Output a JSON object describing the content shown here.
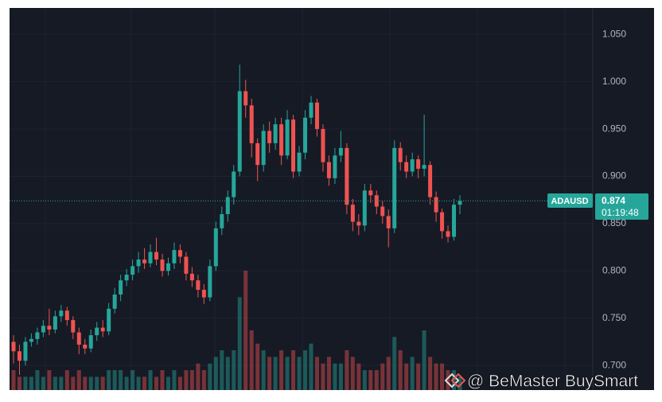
{
  "chart_data": {
    "type": "candlestick",
    "symbol": "ADAUSD",
    "last_price": 0.874,
    "countdown": "01:19:48",
    "watermark": "@ BeMaster BuySmart",
    "up_color": "#26a69a",
    "down_color": "#ef5350",
    "ylim": [
      0.674,
      1.078
    ],
    "yticks": [
      {
        "value": 0.7,
        "label": "0.700"
      },
      {
        "value": 0.75,
        "label": "0.750"
      },
      {
        "value": 0.8,
        "label": "0.800"
      },
      {
        "value": 0.85,
        "label": "0.850"
      },
      {
        "value": 0.9,
        "label": "0.900"
      },
      {
        "value": 0.95,
        "label": "0.950"
      },
      {
        "value": 1.0,
        "label": "1.000"
      },
      {
        "value": 1.05,
        "label": "1.050"
      }
    ],
    "grid": true,
    "open": [
      0.725,
      0.715,
      0.705,
      0.725,
      0.728,
      0.735,
      0.742,
      0.738,
      0.752,
      0.758,
      0.748,
      0.735,
      0.722,
      0.718,
      0.732,
      0.74,
      0.736,
      0.76,
      0.775,
      0.79,
      0.796,
      0.805,
      0.812,
      0.808,
      0.82,
      0.812,
      0.8,
      0.808,
      0.822,
      0.815,
      0.797,
      0.79,
      0.78,
      0.772,
      0.805,
      0.845,
      0.86,
      0.878,
      0.905,
      0.99,
      0.975,
      0.935,
      0.912,
      0.948,
      0.935,
      0.955,
      0.922,
      0.96,
      0.905,
      0.925,
      0.962,
      0.978,
      0.95,
      0.915,
      0.898,
      0.922,
      0.93,
      0.87,
      0.852,
      0.848,
      0.885,
      0.88,
      0.868,
      0.858,
      0.845,
      0.93,
      0.915,
      0.905,
      0.918,
      0.908,
      0.912,
      0.878,
      0.862,
      0.842,
      0.836,
      0.87
    ],
    "high": [
      0.732,
      0.722,
      0.73,
      0.734,
      0.74,
      0.748,
      0.76,
      0.758,
      0.764,
      0.762,
      0.752,
      0.74,
      0.728,
      0.738,
      0.746,
      0.748,
      0.766,
      0.782,
      0.796,
      0.802,
      0.812,
      0.82,
      0.824,
      0.828,
      0.835,
      0.818,
      0.814,
      0.83,
      0.828,
      0.82,
      0.804,
      0.796,
      0.786,
      0.812,
      0.852,
      0.868,
      0.885,
      0.912,
      1.018,
      1.002,
      0.982,
      0.94,
      0.955,
      0.958,
      0.962,
      0.962,
      0.97,
      0.965,
      0.932,
      0.97,
      0.985,
      0.982,
      0.955,
      0.922,
      0.93,
      0.948,
      0.935,
      0.876,
      0.86,
      0.892,
      0.892,
      0.885,
      0.874,
      0.865,
      0.938,
      0.936,
      0.922,
      0.925,
      0.922,
      0.965,
      0.916,
      0.884,
      0.866,
      0.848,
      0.876,
      0.88
    ],
    "low": [
      0.702,
      0.69,
      0.7,
      0.72,
      0.722,
      0.73,
      0.732,
      0.734,
      0.746,
      0.742,
      0.728,
      0.712,
      0.712,
      0.714,
      0.726,
      0.73,
      0.732,
      0.755,
      0.768,
      0.784,
      0.79,
      0.798,
      0.802,
      0.804,
      0.806,
      0.794,
      0.795,
      0.802,
      0.808,
      0.79,
      0.783,
      0.772,
      0.765,
      0.768,
      0.8,
      0.838,
      0.852,
      0.87,
      0.9,
      0.962,
      0.92,
      0.895,
      0.905,
      0.925,
      0.928,
      0.912,
      0.918,
      0.898,
      0.9,
      0.918,
      0.955,
      0.942,
      0.905,
      0.89,
      0.892,
      0.915,
      0.86,
      0.842,
      0.838,
      0.842,
      0.872,
      0.86,
      0.85,
      0.825,
      0.84,
      0.906,
      0.898,
      0.9,
      0.898,
      0.9,
      0.87,
      0.852,
      0.834,
      0.83,
      0.832,
      0.86
    ],
    "close": [
      0.715,
      0.705,
      0.725,
      0.728,
      0.735,
      0.742,
      0.738,
      0.752,
      0.758,
      0.748,
      0.735,
      0.722,
      0.718,
      0.732,
      0.74,
      0.736,
      0.76,
      0.775,
      0.79,
      0.796,
      0.805,
      0.812,
      0.808,
      0.82,
      0.812,
      0.8,
      0.808,
      0.822,
      0.815,
      0.797,
      0.79,
      0.78,
      0.772,
      0.805,
      0.845,
      0.86,
      0.878,
      0.905,
      0.99,
      0.975,
      0.935,
      0.912,
      0.948,
      0.935,
      0.955,
      0.922,
      0.96,
      0.905,
      0.925,
      0.962,
      0.978,
      0.95,
      0.915,
      0.898,
      0.922,
      0.93,
      0.87,
      0.852,
      0.848,
      0.885,
      0.88,
      0.868,
      0.858,
      0.845,
      0.93,
      0.915,
      0.905,
      0.918,
      0.908,
      0.912,
      0.878,
      0.862,
      0.842,
      0.836,
      0.87,
      0.874
    ],
    "volume": [
      3,
      2,
      2,
      2,
      3,
      2,
      3,
      2,
      2,
      3,
      2,
      3,
      2,
      2,
      2,
      2,
      3,
      3,
      3,
      2,
      3,
      2,
      2,
      3,
      2,
      3,
      2,
      3,
      2,
      3,
      3,
      4,
      3,
      4,
      5,
      6,
      5,
      6,
      14,
      18,
      9,
      7,
      6,
      5,
      5,
      6,
      5,
      6,
      5,
      6,
      7,
      5,
      4,
      5,
      4,
      4,
      6,
      5,
      4,
      3,
      3,
      3,
      4,
      5,
      8,
      6,
      4,
      5,
      4,
      9,
      5,
      4,
      4,
      3,
      3,
      2
    ]
  }
}
